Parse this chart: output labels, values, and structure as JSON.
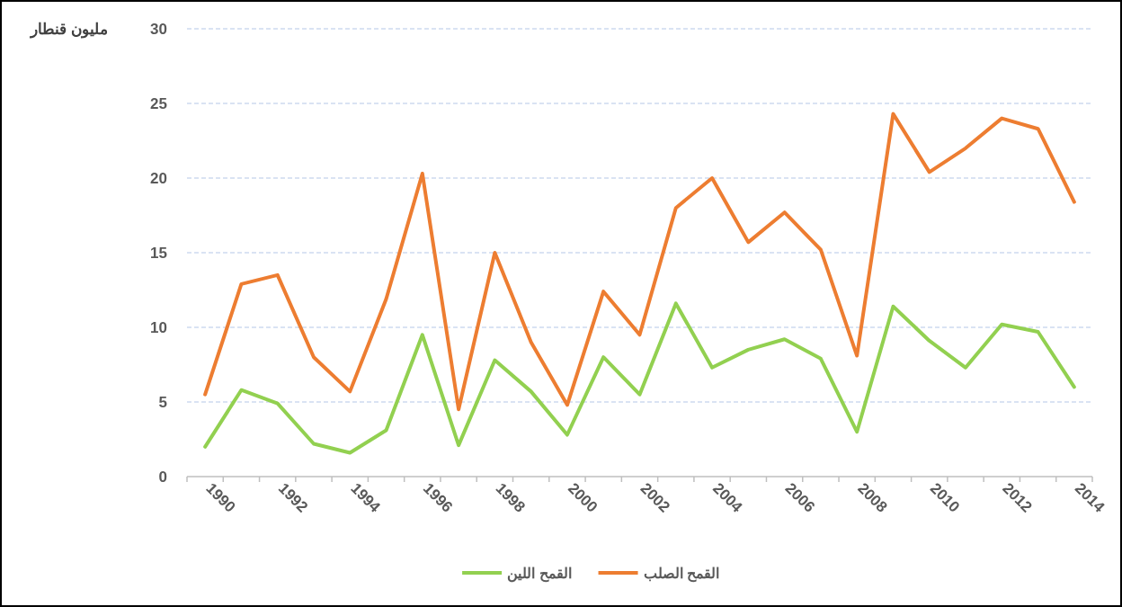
{
  "chart_data": {
    "type": "line",
    "ylabel": "مليون قنطار",
    "categories": [
      "1990",
      null,
      "1992",
      null,
      "1994",
      null,
      "1996",
      null,
      "1998",
      null,
      "2000",
      null,
      "2002",
      null,
      "2004",
      null,
      "2006",
      null,
      "2008",
      null,
      "2010",
      null,
      "2012",
      null,
      "2014"
    ],
    "series": [
      {
        "name": "القمح اللين",
        "color": "#92d050",
        "values": [
          2.0,
          5.8,
          4.9,
          2.2,
          1.6,
          3.1,
          9.5,
          2.1,
          7.8,
          5.7,
          2.8,
          8.0,
          5.5,
          11.6,
          7.3,
          8.5,
          9.2,
          7.9,
          3.0,
          11.4,
          9.1,
          7.3,
          10.2,
          9.7,
          6.0
        ]
      },
      {
        "name": "القمح الصلب",
        "color": "#ed7d31",
        "values": [
          5.5,
          12.9,
          13.5,
          8.0,
          5.7,
          11.9,
          20.3,
          4.5,
          15.0,
          9.0,
          4.8,
          12.4,
          9.5,
          18.0,
          20.0,
          15.7,
          17.7,
          15.2,
          8.1,
          24.3,
          20.4,
          22.0,
          24.0,
          23.3,
          18.4
        ]
      }
    ],
    "ylim": [
      0,
      30
    ],
    "yticks": [
      0,
      5,
      10,
      15,
      20,
      25,
      30
    ],
    "grid": "y",
    "legend": "bottom"
  }
}
